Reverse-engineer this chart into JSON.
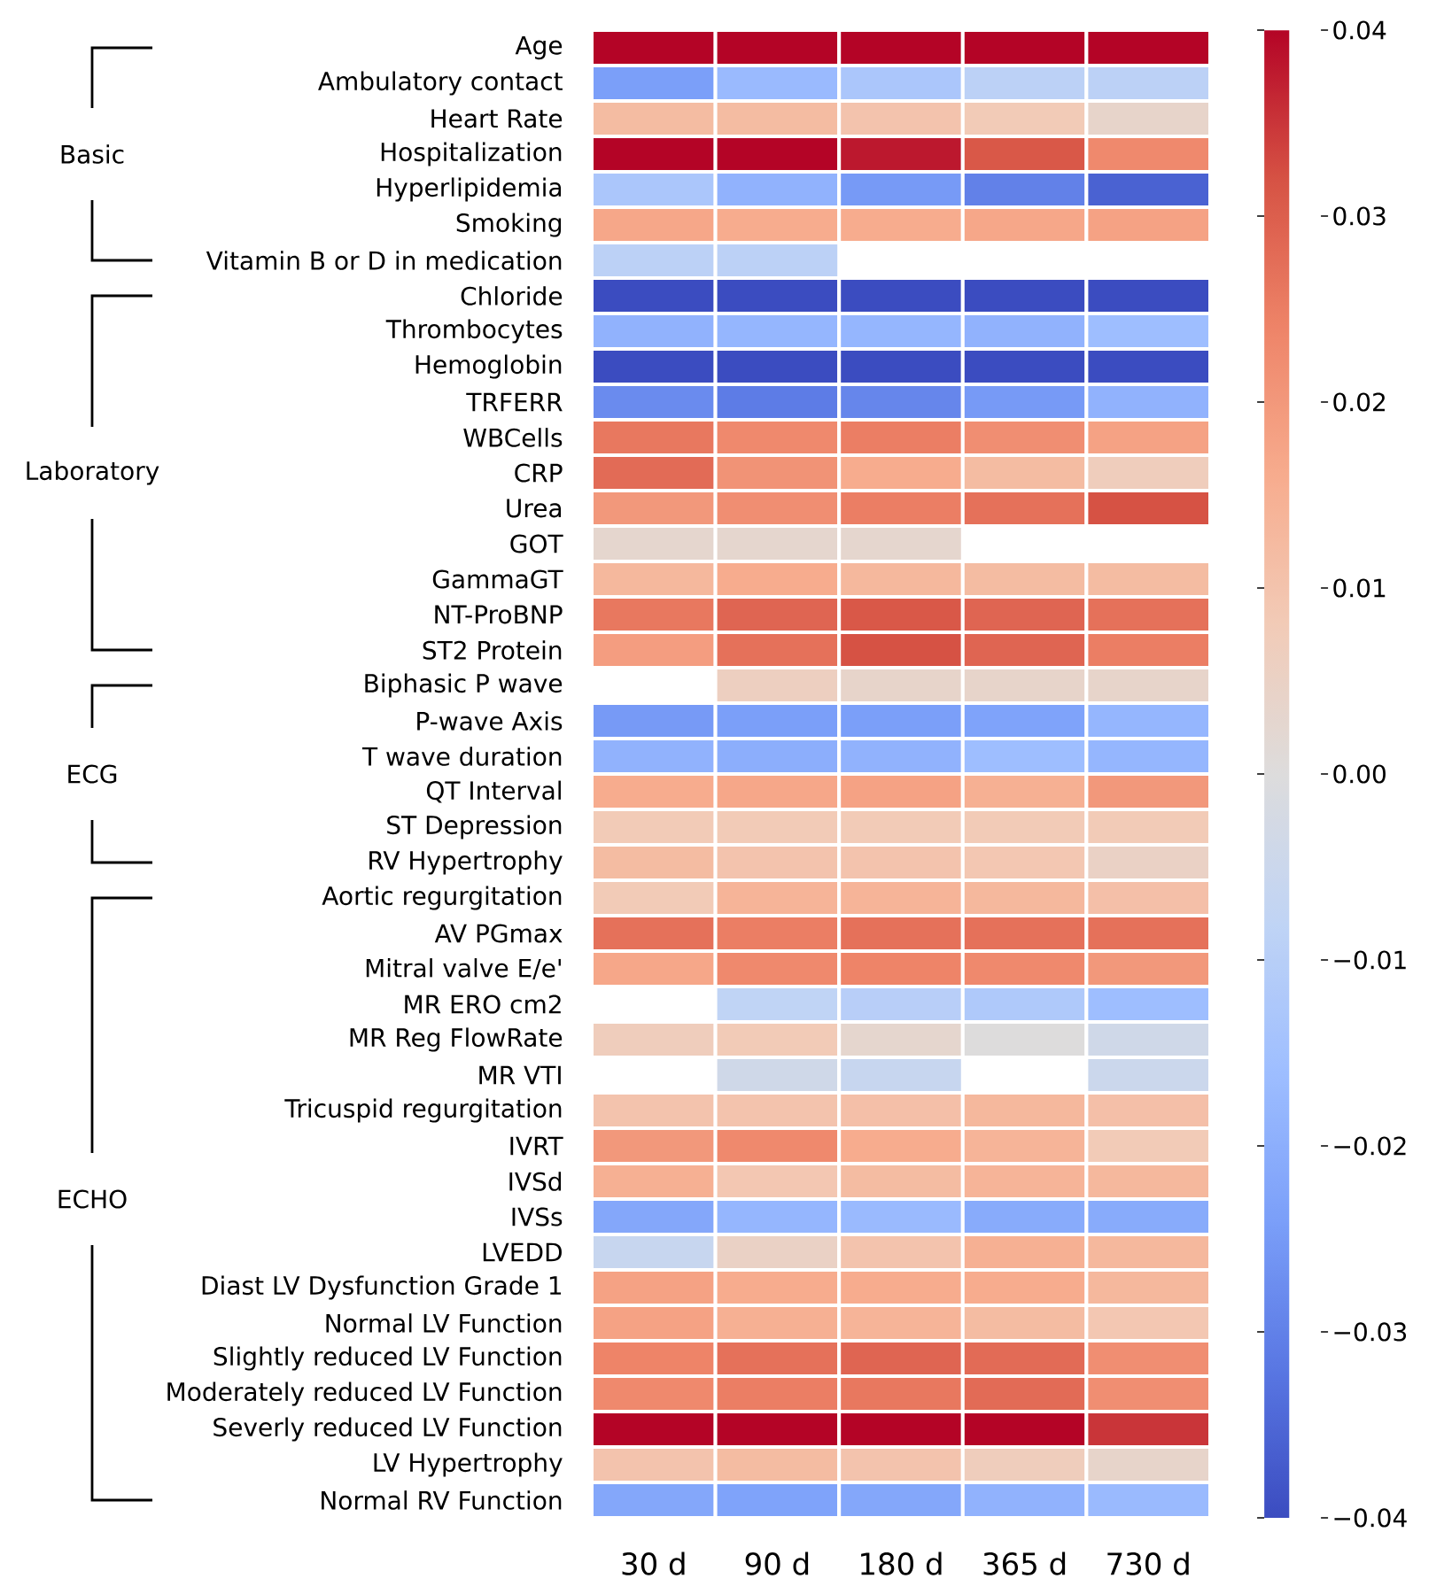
{
  "chart_data": {
    "type": "heatmap",
    "categories": [
      "30 d",
      "90 d",
      "180 d",
      "365 d",
      "730 d"
    ],
    "y_categories": [
      "Age",
      "Ambulatory contact",
      "Heart Rate",
      "Hospitalization",
      "Hyperlipidemia",
      "Smoking",
      "Vitamin B or D in medication",
      "Chloride",
      "Thrombocytes",
      "Hemoglobin",
      "TRFERR",
      "WBCells",
      "CRP",
      "Urea",
      "GOT",
      "GammaGT",
      "NT-ProBNP",
      "ST2 Protein",
      "Biphasic P wave",
      "P-wave Axis",
      "T wave duration",
      "QT Interval",
      "ST Depression",
      "RV Hypertrophy",
      "Aortic regurgitation",
      "AV PGmax",
      "Mitral valve E/e'",
      "MR ERO cm2",
      "MR Reg FlowRate",
      "MR VTI",
      "Tricuspid regurgitation",
      "IVRT",
      "IVSd",
      "IVSs",
      "LVEDD",
      "Diast LV Dysfunction Grade 1",
      "Normal LV Function",
      "Slightly reduced LV Function",
      "Moderately reduced LV Function",
      "Severly reduced LV Function",
      "LV Hypertrophy",
      "Normal RV Function"
    ],
    "cells": [
      [
        0.04,
        0.04,
        0.04,
        0.04,
        0.04
      ],
      [
        -0.024,
        -0.017,
        -0.013,
        -0.009,
        -0.009
      ],
      [
        0.012,
        0.012,
        0.01,
        0.008,
        0.004
      ],
      [
        0.04,
        0.04,
        0.038,
        0.031,
        0.023
      ],
      [
        -0.013,
        -0.019,
        -0.025,
        -0.03,
        -0.036
      ],
      [
        0.017,
        0.016,
        0.016,
        0.017,
        0.018
      ],
      [
        -0.009,
        -0.009,
        null,
        null,
        null
      ],
      [
        -0.04,
        -0.04,
        -0.04,
        -0.04,
        -0.04
      ],
      [
        -0.019,
        -0.018,
        -0.018,
        -0.019,
        -0.016
      ],
      [
        -0.04,
        -0.04,
        -0.04,
        -0.04,
        -0.04
      ],
      [
        -0.028,
        -0.031,
        -0.029,
        -0.025,
        -0.019
      ],
      [
        0.026,
        0.023,
        0.025,
        0.022,
        0.018
      ],
      [
        0.028,
        0.021,
        0.016,
        0.012,
        0.007
      ],
      [
        0.02,
        0.022,
        0.025,
        0.027,
        0.032
      ],
      [
        0.003,
        0.003,
        0.003,
        null,
        null
      ],
      [
        0.013,
        0.016,
        0.013,
        0.012,
        0.012
      ],
      [
        0.026,
        0.029,
        0.031,
        0.029,
        0.027
      ],
      [
        0.019,
        0.027,
        0.032,
        0.029,
        0.025
      ],
      [
        null,
        0.006,
        0.004,
        0.004,
        0.004
      ],
      [
        -0.025,
        -0.024,
        -0.024,
        -0.023,
        -0.018
      ],
      [
        -0.019,
        -0.02,
        -0.019,
        -0.016,
        -0.018
      ],
      [
        0.016,
        0.017,
        0.018,
        0.015,
        0.02
      ],
      [
        0.008,
        0.008,
        0.008,
        0.008,
        0.008
      ],
      [
        0.012,
        0.01,
        0.01,
        0.009,
        0.005
      ],
      [
        0.008,
        0.014,
        0.014,
        0.013,
        0.011
      ],
      [
        0.027,
        0.025,
        0.027,
        0.027,
        0.027
      ],
      [
        0.017,
        0.023,
        0.024,
        0.023,
        0.02
      ],
      [
        null,
        -0.008,
        -0.01,
        -0.012,
        -0.016
      ],
      [
        0.007,
        0.008,
        0.003,
        0.0,
        -0.004
      ],
      [
        null,
        -0.004,
        -0.006,
        null,
        -0.005
      ],
      [
        0.01,
        0.01,
        0.011,
        0.013,
        0.011
      ],
      [
        0.02,
        0.023,
        0.016,
        0.014,
        0.008
      ],
      [
        0.015,
        0.009,
        0.012,
        0.014,
        0.013
      ],
      [
        -0.022,
        -0.018,
        -0.017,
        -0.021,
        -0.021
      ],
      [
        -0.006,
        0.005,
        0.01,
        0.015,
        0.013
      ],
      [
        0.018,
        0.016,
        0.016,
        0.016,
        0.013
      ],
      [
        0.018,
        0.015,
        0.014,
        0.012,
        0.009
      ],
      [
        0.024,
        0.027,
        0.029,
        0.028,
        0.022
      ],
      [
        0.023,
        0.025,
        0.026,
        0.028,
        0.022
      ],
      [
        0.04,
        0.04,
        0.04,
        0.04,
        0.035
      ],
      [
        0.01,
        0.012,
        0.01,
        0.007,
        0.004
      ],
      [
        -0.022,
        -0.023,
        -0.022,
        -0.019,
        -0.017
      ]
    ],
    "clim": [
      -0.04,
      0.04
    ],
    "cticks": [
      {
        "value": -0.04,
        "label": "−0.04"
      },
      {
        "value": -0.03,
        "label": "−0.03"
      },
      {
        "value": -0.02,
        "label": "−0.02"
      },
      {
        "value": -0.01,
        "label": "−0.01"
      },
      {
        "value": 0.0,
        "label": "0.00"
      },
      {
        "value": 0.01,
        "label": "0.01"
      },
      {
        "value": 0.02,
        "label": "0.02"
      },
      {
        "value": 0.03,
        "label": "0.03"
      },
      {
        "value": 0.04,
        "label": "0.04"
      }
    ],
    "annotations": [
      "Basic",
      "Laboratory",
      "ECG",
      "ECHO"
    ]
  }
}
